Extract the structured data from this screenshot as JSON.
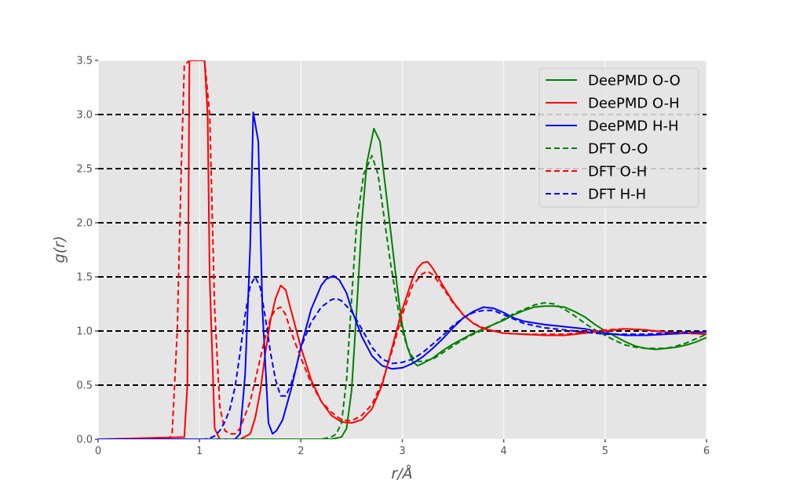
{
  "chart_data": {
    "type": "line",
    "title": "",
    "xlabel": "r/Å",
    "ylabel": "g(r)",
    "xlim": [
      0,
      6
    ],
    "ylim": [
      0,
      3.5
    ],
    "xticks": [
      0,
      1,
      2,
      3,
      4,
      5,
      6
    ],
    "xtick_labels": [
      "0",
      "1",
      "2",
      "3",
      "4",
      "5",
      "6"
    ],
    "yticks": [
      0.0,
      0.5,
      1.0,
      1.5,
      2.0,
      2.5,
      3.0,
      3.5
    ],
    "ytick_labels": [
      "0.0",
      "0.5",
      "1.0",
      "1.5",
      "2.0",
      "2.5",
      "3.0",
      "3.5"
    ],
    "grid": true,
    "background": "#e5e5e5",
    "hlines": {
      "values": [
        0.5,
        1.0,
        1.5,
        2.0,
        2.5,
        3.0
      ],
      "style": "dashed",
      "color": "#000000"
    },
    "legend_position": "upper right",
    "series": [
      {
        "name": "DeePMD O-O",
        "color": "#008000",
        "style": "solid",
        "x": [
          0,
          2.3,
          2.4,
          2.45,
          2.5,
          2.55,
          2.6,
          2.65,
          2.72,
          2.78,
          2.85,
          2.9,
          2.95,
          3.0,
          3.05,
          3.1,
          3.15,
          3.2,
          3.3,
          3.4,
          3.5,
          3.6,
          3.7,
          3.8,
          3.9,
          4.0,
          4.1,
          4.2,
          4.3,
          4.4,
          4.5,
          4.6,
          4.7,
          4.8,
          4.9,
          5.0,
          5.1,
          5.2,
          5.3,
          5.4,
          5.5,
          5.6,
          5.7,
          5.8,
          5.9,
          6.0
        ],
        "y": [
          0,
          0,
          0.02,
          0.1,
          0.45,
          1.2,
          2.0,
          2.55,
          2.87,
          2.75,
          2.2,
          1.8,
          1.4,
          1.05,
          0.85,
          0.72,
          0.68,
          0.7,
          0.75,
          0.82,
          0.88,
          0.93,
          0.98,
          1.02,
          1.06,
          1.1,
          1.15,
          1.19,
          1.22,
          1.23,
          1.23,
          1.22,
          1.18,
          1.13,
          1.06,
          1.0,
          0.95,
          0.9,
          0.86,
          0.84,
          0.83,
          0.84,
          0.85,
          0.87,
          0.9,
          0.94
        ]
      },
      {
        "name": "DeePMD O-H",
        "color": "#ff0000",
        "style": "solid",
        "x": [
          0,
          0.85,
          0.88,
          0.9,
          0.95,
          1.0,
          1.05,
          1.08,
          1.1,
          1.15,
          1.2,
          1.3,
          1.4,
          1.5,
          1.55,
          1.6,
          1.65,
          1.7,
          1.75,
          1.8,
          1.85,
          1.9,
          2.0,
          2.1,
          2.2,
          2.3,
          2.4,
          2.5,
          2.6,
          2.7,
          2.8,
          2.9,
          3.0,
          3.1,
          3.15,
          3.2,
          3.25,
          3.3,
          3.4,
          3.5,
          3.6,
          3.7,
          3.8,
          3.9,
          4.0,
          4.2,
          4.4,
          4.6,
          4.8,
          5.0,
          5.2,
          5.4,
          5.6,
          5.8,
          6.0
        ],
        "y": [
          0,
          0.02,
          0.5,
          3.5,
          3.5,
          3.5,
          3.5,
          3.0,
          1.5,
          0.1,
          0.0,
          0.0,
          0.0,
          0.05,
          0.2,
          0.45,
          0.8,
          1.1,
          1.3,
          1.42,
          1.38,
          1.2,
          0.85,
          0.55,
          0.35,
          0.22,
          0.16,
          0.15,
          0.18,
          0.28,
          0.5,
          0.85,
          1.2,
          1.48,
          1.58,
          1.63,
          1.64,
          1.58,
          1.42,
          1.27,
          1.15,
          1.07,
          1.02,
          1.0,
          0.98,
          0.97,
          0.96,
          0.96,
          0.98,
          1.0,
          1.02,
          1.01,
          0.99,
          0.98,
          0.97
        ]
      },
      {
        "name": "DeePMD H-H",
        "color": "#0000ff",
        "style": "solid",
        "x": [
          0,
          1.2,
          1.35,
          1.4,
          1.45,
          1.5,
          1.53,
          1.58,
          1.62,
          1.68,
          1.72,
          1.76,
          1.82,
          1.9,
          2.0,
          2.1,
          2.2,
          2.25,
          2.32,
          2.38,
          2.45,
          2.5,
          2.6,
          2.7,
          2.8,
          2.9,
          3.0,
          3.1,
          3.2,
          3.3,
          3.4,
          3.5,
          3.6,
          3.7,
          3.8,
          3.9,
          4.0,
          4.1,
          4.2,
          4.4,
          4.6,
          4.8,
          5.0,
          5.2,
          5.4,
          5.6,
          5.8,
          6.0
        ],
        "y": [
          0,
          0.0,
          0.0,
          0.05,
          0.6,
          1.8,
          3.02,
          2.75,
          1.2,
          0.15,
          0.05,
          0.08,
          0.18,
          0.45,
          0.85,
          1.2,
          1.42,
          1.48,
          1.51,
          1.47,
          1.35,
          1.2,
          0.95,
          0.77,
          0.68,
          0.65,
          0.66,
          0.7,
          0.76,
          0.84,
          0.93,
          1.03,
          1.12,
          1.18,
          1.22,
          1.21,
          1.17,
          1.12,
          1.09,
          1.06,
          1.04,
          1.02,
          0.98,
          0.96,
          0.96,
          0.97,
          0.98,
          0.99
        ]
      },
      {
        "name": "DFT O-O",
        "color": "#008000",
        "style": "dashed",
        "x": [
          0,
          2.2,
          2.3,
          2.35,
          2.4,
          2.45,
          2.5,
          2.55,
          2.62,
          2.7,
          2.76,
          2.82,
          2.88,
          2.95,
          3.0,
          3.05,
          3.1,
          3.15,
          3.2,
          3.3,
          3.4,
          3.5,
          3.6,
          3.7,
          3.8,
          3.9,
          4.0,
          4.1,
          4.2,
          4.3,
          4.4,
          4.5,
          4.6,
          4.7,
          4.8,
          4.9,
          5.0,
          5.1,
          5.2,
          5.3,
          5.4,
          5.5,
          5.6,
          5.7,
          5.8,
          5.9,
          6.0
        ],
        "y": [
          0,
          0,
          0.02,
          0.05,
          0.15,
          0.55,
          1.3,
          2.0,
          2.45,
          2.62,
          2.45,
          2.05,
          1.65,
          1.25,
          1.0,
          0.85,
          0.76,
          0.72,
          0.72,
          0.74,
          0.8,
          0.86,
          0.92,
          0.97,
          1.01,
          1.06,
          1.11,
          1.16,
          1.2,
          1.24,
          1.26,
          1.25,
          1.2,
          1.14,
          1.07,
          1.01,
          0.96,
          0.91,
          0.87,
          0.85,
          0.84,
          0.84,
          0.84,
          0.86,
          0.89,
          0.93,
          0.97
        ]
      },
      {
        "name": "DFT O-H",
        "color": "#ff0000",
        "style": "dashed",
        "x": [
          0,
          0.7,
          0.73,
          0.78,
          0.82,
          0.85,
          0.9,
          1.0,
          1.05,
          1.1,
          1.15,
          1.2,
          1.25,
          1.3,
          1.35,
          1.4,
          1.5,
          1.6,
          1.65,
          1.7,
          1.75,
          1.8,
          1.85,
          1.9,
          2.0,
          2.1,
          2.2,
          2.3,
          2.4,
          2.5,
          2.6,
          2.7,
          2.8,
          2.9,
          3.0,
          3.1,
          3.2,
          3.25,
          3.3,
          3.4,
          3.5,
          3.6,
          3.7,
          3.8,
          3.9,
          4.0,
          4.2,
          4.4,
          4.6,
          4.8,
          5.0,
          5.2,
          5.4,
          5.6,
          5.8,
          6.0
        ],
        "y": [
          0,
          0.0,
          0.05,
          1.0,
          2.5,
          3.45,
          3.5,
          3.5,
          3.5,
          3.0,
          1.2,
          0.3,
          0.08,
          0.05,
          0.05,
          0.1,
          0.35,
          0.75,
          0.95,
          1.12,
          1.2,
          1.22,
          1.15,
          1.0,
          0.75,
          0.52,
          0.35,
          0.25,
          0.18,
          0.17,
          0.22,
          0.32,
          0.52,
          0.82,
          1.15,
          1.42,
          1.53,
          1.55,
          1.52,
          1.4,
          1.26,
          1.15,
          1.07,
          1.03,
          1.0,
          0.98,
          0.97,
          0.97,
          0.97,
          0.99,
          1.01,
          1.02,
          1.01,
          0.99,
          0.98,
          0.97
        ]
      },
      {
        "name": "DFT H-H",
        "color": "#0000ff",
        "style": "dashed",
        "x": [
          0,
          1.05,
          1.1,
          1.15,
          1.2,
          1.25,
          1.3,
          1.35,
          1.4,
          1.45,
          1.5,
          1.55,
          1.6,
          1.65,
          1.7,
          1.75,
          1.8,
          1.85,
          1.9,
          1.95,
          2.0,
          2.1,
          2.2,
          2.3,
          2.35,
          2.4,
          2.5,
          2.6,
          2.7,
          2.8,
          2.9,
          3.0,
          3.1,
          3.2,
          3.3,
          3.4,
          3.5,
          3.6,
          3.7,
          3.8,
          3.9,
          4.0,
          4.2,
          4.4,
          4.6,
          4.8,
          5.0,
          5.2,
          5.4,
          5.6,
          5.8,
          6.0
        ],
        "y": [
          0,
          0.0,
          0.01,
          0.03,
          0.08,
          0.16,
          0.28,
          0.48,
          0.8,
          1.15,
          1.42,
          1.5,
          1.4,
          1.12,
          0.8,
          0.55,
          0.4,
          0.4,
          0.5,
          0.65,
          0.85,
          1.08,
          1.22,
          1.29,
          1.3,
          1.28,
          1.18,
          1.02,
          0.85,
          0.74,
          0.7,
          0.71,
          0.74,
          0.8,
          0.88,
          0.96,
          1.05,
          1.12,
          1.17,
          1.19,
          1.19,
          1.15,
          1.07,
          1.03,
          1.01,
          0.99,
          0.97,
          0.97,
          0.97,
          0.98,
          0.99,
          0.99
        ]
      }
    ]
  }
}
